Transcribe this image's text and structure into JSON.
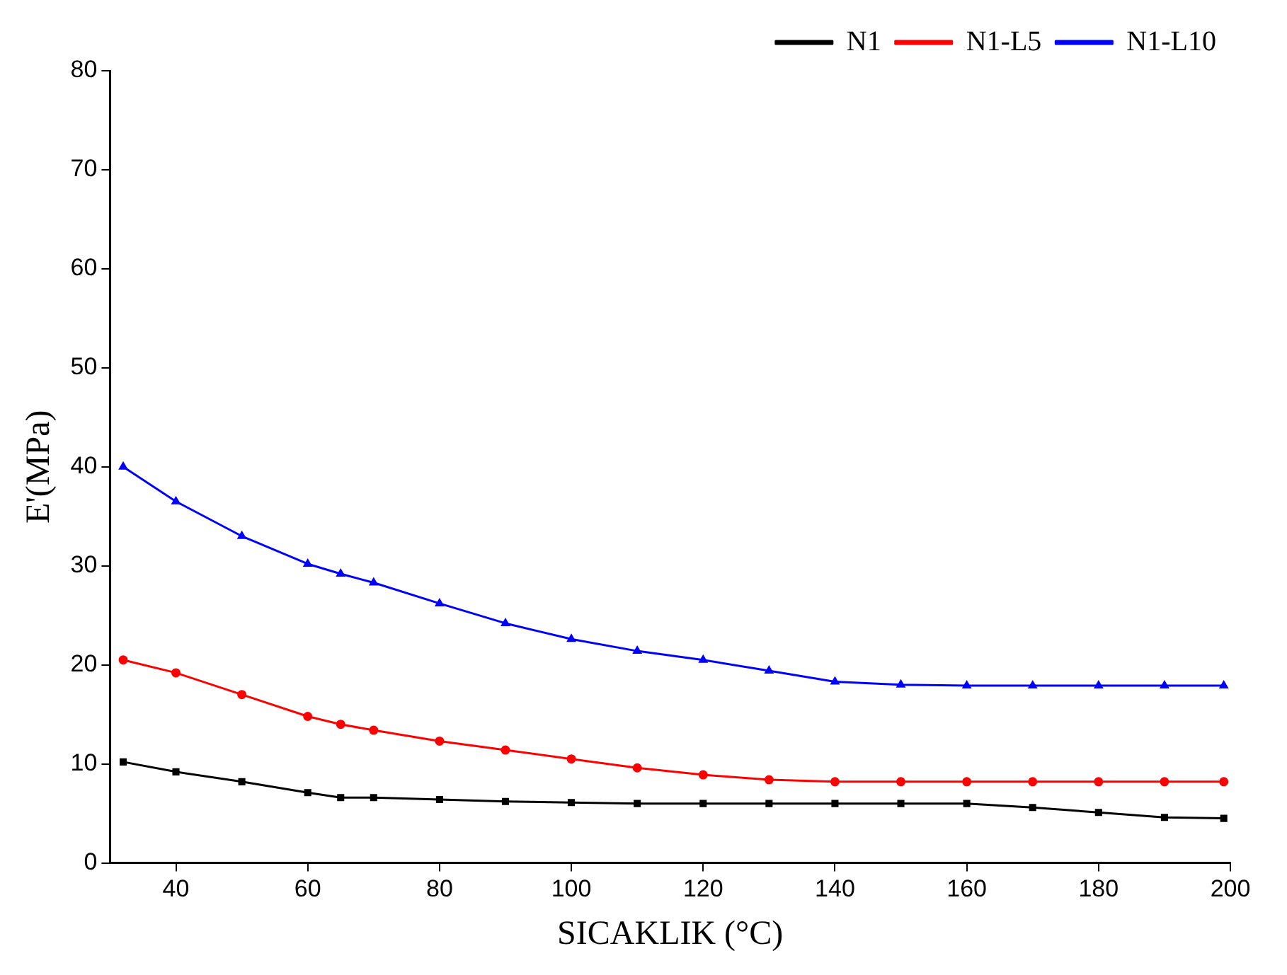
{
  "chart_data": {
    "type": "line",
    "xlabel": "SICAKLIK (°C)",
    "ylabel": "E'(MPa)",
    "xlim": [
      30,
      200
    ],
    "xticks": [
      40,
      60,
      80,
      100,
      120,
      140,
      160,
      180,
      200
    ],
    "ylim": [
      0,
      80
    ],
    "yticks": [
      0,
      10,
      20,
      30,
      40,
      50,
      60,
      70,
      80
    ],
    "grid": false,
    "legend": "top right",
    "line_style": "solid",
    "x": [
      32,
      40,
      50,
      60,
      65,
      70,
      80,
      90,
      100,
      110,
      120,
      130,
      140,
      150,
      160,
      170,
      180,
      190,
      199
    ],
    "series": [
      {
        "name": "N1",
        "color": "#000000",
        "marker": "square",
        "values": [
          10.2,
          9.2,
          8.2,
          7.1,
          6.6,
          6.6,
          6.4,
          6.2,
          6.1,
          6.0,
          6.0,
          6.0,
          6.0,
          6.0,
          6.0,
          5.6,
          5.1,
          4.6,
          4.5
        ]
      },
      {
        "name": "N1-L5",
        "color": "#ff0000",
        "marker": "circle",
        "values": [
          20.5,
          19.2,
          17.0,
          14.8,
          14.0,
          13.4,
          12.3,
          11.4,
          10.5,
          9.6,
          8.9,
          8.4,
          8.2,
          8.2,
          8.2,
          8.2,
          8.2,
          8.2,
          8.2
        ]
      },
      {
        "name": "N1-L10",
        "color": "#0000ff",
        "marker": "triangle",
        "values": [
          40.0,
          36.5,
          33.0,
          30.2,
          29.2,
          28.3,
          26.2,
          24.2,
          22.6,
          21.4,
          20.5,
          19.4,
          18.3,
          18.0,
          17.9,
          17.9,
          17.9,
          17.9,
          17.9
        ]
      }
    ]
  }
}
